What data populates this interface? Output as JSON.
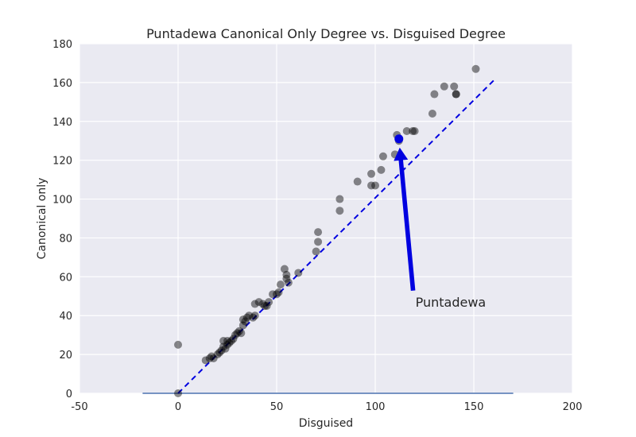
{
  "chart_data": {
    "type": "scatter",
    "title": "Puntadewa Canonical Only Degree vs. Disguised Degree",
    "xlabel": "Disguised",
    "ylabel": "Canonical only",
    "xlim": [
      -50,
      200
    ],
    "ylim": [
      0,
      180
    ],
    "x_ticks": [
      -50,
      0,
      50,
      100,
      150,
      200
    ],
    "y_ticks": [
      0,
      20,
      40,
      60,
      80,
      100,
      120,
      140,
      160,
      180
    ],
    "grid": true,
    "points": [
      {
        "x": 0,
        "y": 25
      },
      {
        "x": 0,
        "y": 0
      },
      {
        "x": 14,
        "y": 17
      },
      {
        "x": 16,
        "y": 18
      },
      {
        "x": 17,
        "y": 19
      },
      {
        "x": 18,
        "y": 18
      },
      {
        "x": 20,
        "y": 20
      },
      {
        "x": 21,
        "y": 21
      },
      {
        "x": 22,
        "y": 22
      },
      {
        "x": 23,
        "y": 24
      },
      {
        "x": 23,
        "y": 27
      },
      {
        "x": 24,
        "y": 23
      },
      {
        "x": 25,
        "y": 25
      },
      {
        "x": 25,
        "y": 27
      },
      {
        "x": 26,
        "y": 26
      },
      {
        "x": 27,
        "y": 27
      },
      {
        "x": 28,
        "y": 28
      },
      {
        "x": 29,
        "y": 30
      },
      {
        "x": 30,
        "y": 31
      },
      {
        "x": 31,
        "y": 32
      },
      {
        "x": 32,
        "y": 31
      },
      {
        "x": 33,
        "y": 35
      },
      {
        "x": 33,
        "y": 38
      },
      {
        "x": 34,
        "y": 37
      },
      {
        "x": 35,
        "y": 39
      },
      {
        "x": 36,
        "y": 40
      },
      {
        "x": 38,
        "y": 39
      },
      {
        "x": 39,
        "y": 40
      },
      {
        "x": 39,
        "y": 46
      },
      {
        "x": 41,
        "y": 47
      },
      {
        "x": 43,
        "y": 46
      },
      {
        "x": 44,
        "y": 45
      },
      {
        "x": 45,
        "y": 45
      },
      {
        "x": 46,
        "y": 47
      },
      {
        "x": 48,
        "y": 51
      },
      {
        "x": 50,
        "y": 51
      },
      {
        "x": 51,
        "y": 52
      },
      {
        "x": 52,
        "y": 56
      },
      {
        "x": 54,
        "y": 64
      },
      {
        "x": 55,
        "y": 59
      },
      {
        "x": 55,
        "y": 61
      },
      {
        "x": 56,
        "y": 57
      },
      {
        "x": 61,
        "y": 62
      },
      {
        "x": 70,
        "y": 73
      },
      {
        "x": 71,
        "y": 78
      },
      {
        "x": 71,
        "y": 83
      },
      {
        "x": 82,
        "y": 94
      },
      {
        "x": 82,
        "y": 100
      },
      {
        "x": 91,
        "y": 109
      },
      {
        "x": 98,
        "y": 107
      },
      {
        "x": 98,
        "y": 113
      },
      {
        "x": 100,
        "y": 107
      },
      {
        "x": 103,
        "y": 115
      },
      {
        "x": 104,
        "y": 122
      },
      {
        "x": 110,
        "y": 123
      },
      {
        "x": 111,
        "y": 133
      },
      {
        "x": 112,
        "y": 130
      },
      {
        "x": 116,
        "y": 135
      },
      {
        "x": 119,
        "y": 135
      },
      {
        "x": 120,
        "y": 135
      },
      {
        "x": 129,
        "y": 144
      },
      {
        "x": 130,
        "y": 154
      },
      {
        "x": 135,
        "y": 158
      },
      {
        "x": 140,
        "y": 158
      },
      {
        "x": 141,
        "y": 154
      },
      {
        "x": 141,
        "y": 154
      },
      {
        "x": 151,
        "y": 167
      }
    ],
    "highlight": {
      "name": "Puntadewa",
      "x": 112,
      "y": 131,
      "color": "#0000e0"
    },
    "annotation": {
      "text": "Puntadewa",
      "text_x": 120,
      "text_y": 50
    },
    "reference_line": {
      "x": [
        0,
        160
      ],
      "y": [
        0,
        161
      ],
      "style": "dashed",
      "color": "#0000e0"
    },
    "baseline": {
      "x": [
        -18,
        170
      ],
      "y": 0,
      "color": "#4c72b0"
    },
    "colors": {
      "background": "#eaeaf2",
      "grid": "#ffffff",
      "points": "#000000"
    }
  }
}
